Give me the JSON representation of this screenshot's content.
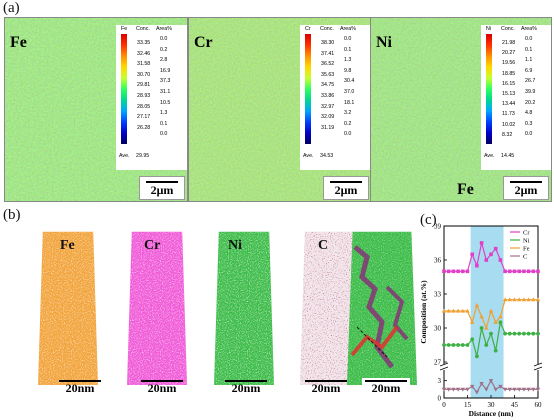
{
  "panels": {
    "a": "(a)",
    "b": "(b)",
    "c": "(c)"
  },
  "maps": [
    {
      "element": "Fe",
      "header": [
        "Fe",
        "Conc.",
        "Area%"
      ],
      "conc": [
        "33.35",
        "32.46",
        "31.58",
        "30.70",
        "29.81",
        "28.93",
        "28.05",
        "27.17",
        "26.28"
      ],
      "area": [
        "0.0",
        "0.2",
        "2.8",
        "16.9",
        "37.3",
        "31.1",
        "10.5",
        "1.3",
        "0.1",
        "0.0"
      ],
      "ave_label": "Ave.",
      "ave_value": "29.95",
      "scale": "2μm"
    },
    {
      "element": "Cr",
      "header": [
        "Cr",
        "Conc.",
        "Area%"
      ],
      "conc": [
        "38.30",
        "37.41",
        "36.52",
        "35.63",
        "34.75",
        "33.86",
        "32.97",
        "32.09",
        "31.19"
      ],
      "area": [
        "0.0",
        "0.1",
        "1.3",
        "9.8",
        "30.4",
        "37.0",
        "18.1",
        "3.2",
        "0.2",
        "0.0"
      ],
      "ave_label": "Ave.",
      "ave_value": "34.53",
      "scale": "2μm"
    },
    {
      "element": "Ni",
      "header": [
        "Ni",
        "Conc.",
        "Area%"
      ],
      "conc": [
        "21.98",
        "20.27",
        "19.56",
        "18.85",
        "16.15",
        "15.13",
        "13.44",
        "11.73",
        "10.02",
        "8.32"
      ],
      "area": [
        "0.0",
        "0.1",
        "1.1",
        "6.9",
        "26.7",
        "39.9",
        "20.2",
        "4.8",
        "0.3",
        "0.0"
      ],
      "ave_label": "Ave.",
      "ave_value": "14.45",
      "scale": "2μm",
      "extra_label": "Fe"
    }
  ],
  "apt": [
    {
      "label": "Fe",
      "color": "#f2a33a",
      "scale": "20nm"
    },
    {
      "label": "Cr",
      "color": "#f05ad8",
      "scale": "20nm"
    },
    {
      "label": "Ni",
      "color": "#3cbc48",
      "scale": "20nm"
    },
    {
      "label": "C",
      "color": "#7a1c3c",
      "scale": "20nm"
    },
    {
      "label": "",
      "color": "#3cbc48",
      "scale": "20nm"
    }
  ],
  "chart_data": {
    "type": "line",
    "xlabel": "Distance (nm)",
    "ylabel": "Composition (at.%)",
    "xticks": [
      "0",
      "15",
      "30",
      "45",
      "60"
    ],
    "yticks_upper": [
      "27",
      "30",
      "33",
      "36",
      "39"
    ],
    "yticks_lower": [
      "0",
      "3"
    ],
    "shaded_region": [
      17,
      38
    ],
    "shade_color": "#a8dcf0",
    "series": [
      {
        "name": "Cr",
        "color": "#e040c8",
        "marker": "square",
        "x": [
          0,
          3,
          6,
          9,
          12,
          15,
          18,
          21,
          24,
          27,
          30,
          33,
          36,
          39,
          42,
          45,
          48,
          51,
          54,
          57,
          60
        ],
        "y": [
          35,
          35,
          35,
          35,
          35,
          35,
          36.5,
          35.5,
          37.5,
          36,
          36.5,
          37,
          36,
          35,
          35,
          35,
          35,
          35,
          35,
          35,
          35
        ]
      },
      {
        "name": "Ni",
        "color": "#3cb043",
        "marker": "circle",
        "x": [
          0,
          3,
          6,
          9,
          12,
          15,
          18,
          21,
          24,
          27,
          30,
          33,
          36,
          39,
          42,
          45,
          48,
          51,
          54,
          57,
          60
        ],
        "y": [
          28.5,
          28.5,
          28.5,
          28.5,
          28.5,
          28.5,
          29,
          27.5,
          30,
          28.5,
          29.5,
          28,
          30.5,
          29.5,
          29.5,
          29.5,
          29.5,
          29.5,
          29.5,
          29.5,
          29.5
        ]
      },
      {
        "name": "Fe",
        "color": "#f0a030",
        "marker": "triangle-up",
        "x": [
          0,
          3,
          6,
          9,
          12,
          15,
          18,
          21,
          24,
          27,
          30,
          33,
          36,
          39,
          42,
          45,
          48,
          51,
          54,
          57,
          60
        ],
        "y": [
          31.5,
          31.5,
          31.5,
          31.5,
          31.5,
          31.5,
          30.5,
          32,
          31,
          30,
          31.5,
          30.5,
          31,
          32.5,
          32.5,
          32.5,
          32.5,
          32.5,
          32.5,
          32.5,
          32.5
        ]
      },
      {
        "name": "C",
        "color": "#a07088",
        "marker": "triangle-down",
        "x": [
          0,
          3,
          6,
          9,
          12,
          15,
          18,
          21,
          24,
          27,
          30,
          33,
          36,
          39,
          42,
          45,
          48,
          51,
          54,
          57,
          60
        ],
        "y": [
          1.5,
          1.5,
          1.5,
          1.5,
          1.5,
          1.5,
          2,
          1,
          2.5,
          1.5,
          3,
          1.5,
          2,
          1.5,
          1.5,
          1.5,
          1.5,
          1.5,
          1.5,
          1.5,
          1.5
        ]
      }
    ]
  }
}
